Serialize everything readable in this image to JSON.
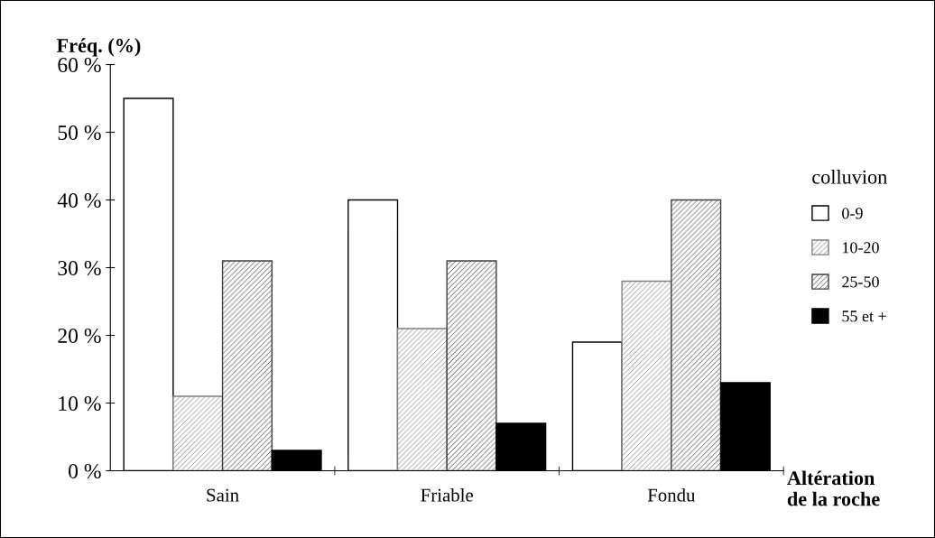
{
  "chart_data": {
    "type": "bar",
    "ylabel": "Fréq. (%)",
    "xlabel": "Altération\nde la roche",
    "legend_title": "colluvion",
    "legend": "right",
    "grid": false,
    "categories": [
      "Sain",
      "Friable",
      "Fondu"
    ],
    "series": [
      {
        "name": "0-9",
        "color": "#ffffff",
        "values": [
          55,
          40,
          19
        ]
      },
      {
        "name": "10-20",
        "color": "#808080",
        "values": [
          11,
          21,
          28
        ]
      },
      {
        "name": "25-50",
        "color": "#404040",
        "values": [
          31,
          31,
          40
        ]
      },
      {
        "name": "55 et +",
        "color": "#000000",
        "values": [
          3,
          7,
          13
        ]
      }
    ],
    "ylim": [
      0,
      60
    ],
    "yticks": [
      {
        "value": 0,
        "label": "0 %"
      },
      {
        "value": 10,
        "label": "10 %"
      },
      {
        "value": 20,
        "label": "20 %"
      },
      {
        "value": 30,
        "label": "30 %"
      },
      {
        "value": 40,
        "label": "40 %"
      },
      {
        "value": 50,
        "label": "50 %"
      },
      {
        "value": 60,
        "label": "60 %"
      }
    ]
  }
}
